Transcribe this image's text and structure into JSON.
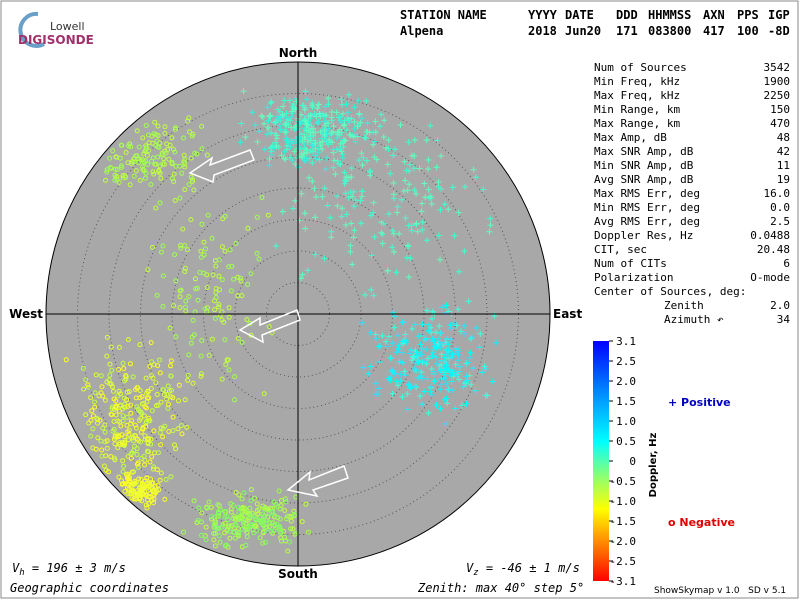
{
  "logo": {
    "brand": "Lowell",
    "product": "DIGISONDE"
  },
  "header": {
    "labels": [
      "STATION NAME",
      "YYYY",
      "DATE",
      "DDD",
      "HHMMSS",
      "AXN",
      "PPS",
      "IGP"
    ],
    "values": [
      "Alpena",
      "2018",
      "Jun20",
      "171",
      "083800",
      "417",
      "100",
      "-8D"
    ]
  },
  "directions": {
    "north": "North",
    "south": "South",
    "east": "East",
    "west": "West"
  },
  "stats": [
    [
      "Num of Sources",
      "3542"
    ],
    [
      "Min Freq, kHz",
      "1900"
    ],
    [
      "Max Freq, kHz",
      "2250"
    ],
    [
      "Min Range, km",
      "150"
    ],
    [
      "Max Range, km",
      "470"
    ],
    [
      "Max Amp, dB",
      "48"
    ],
    [
      "Max SNR Amp, dB",
      "42"
    ],
    [
      "Min SNR Amp, dB",
      "11"
    ],
    [
      "Avg SNR Amp, dB",
      "19"
    ],
    [
      "Max RMS Err, deg",
      "16.0"
    ],
    [
      "Min RMS Err, deg",
      "0.0"
    ],
    [
      "Avg RMS Err, deg",
      "2.5"
    ],
    [
      "Doppler Res, Hz",
      "0.0488"
    ],
    [
      "CIT, sec",
      "20.48"
    ],
    [
      "Num of CITs",
      "6"
    ],
    [
      "Polarization",
      "O-mode"
    ]
  ],
  "center": {
    "title": "Center of Sources, deg:",
    "rows": [
      [
        "Zenith",
        "2.0"
      ],
      [
        "Azimuth ↶",
        "34"
      ]
    ]
  },
  "colorbar": {
    "ticks": [
      "3.1",
      "2.5",
      "2.0",
      "1.5",
      "1.0",
      "0.5",
      "0",
      "-0.5",
      "-1.0",
      "-1.5",
      "-2.0",
      "-2.5",
      "-3.1"
    ],
    "label": "Doppler, Hz"
  },
  "legend": {
    "positive": "+ Positive",
    "negative": "o Negative"
  },
  "footer": {
    "vh": {
      "symbol": "V",
      "sub": "h",
      "text": " = 196 ± 3 m/s"
    },
    "vz": {
      "symbol": "V",
      "sub": "z",
      "text": " = -46 ± 1 m/s"
    },
    "coords": "Geographic coordinates",
    "zenith": "Zenith: max 40°  step 5°",
    "version": "ShowSkymap v 1.0   SD v 5.1"
  }
}
